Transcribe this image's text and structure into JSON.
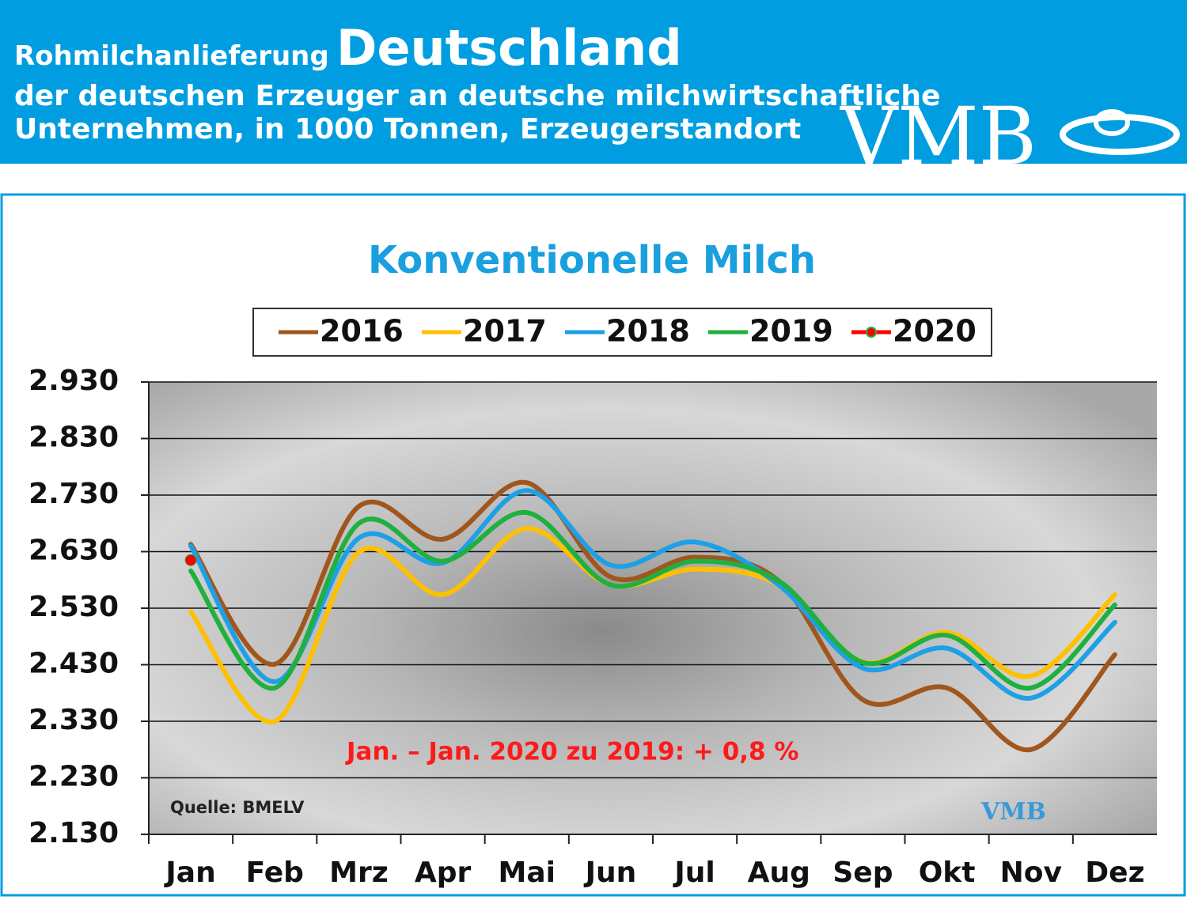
{
  "header": {
    "title_small": "Rohmilchanlieferung",
    "title_big": "Deutschland",
    "subtitle_1": "der deutschen Erzeuger an deutsche milchwirtschaftliche",
    "subtitle_2": "Unternehmen, in 1000 Tonnen, Erzeugerstandort",
    "logo": "VMB"
  },
  "chart_data": {
    "type": "line",
    "title": "Konventionelle Milch",
    "categories": [
      "Jan",
      "Feb",
      "Mrz",
      "Apr",
      "Mai",
      "Jun",
      "Jul",
      "Aug",
      "Sep",
      "Okt",
      "Nov",
      "Dez"
    ],
    "series": [
      {
        "name": "2016",
        "color": "#a0561c",
        "values": [
          2643,
          2431,
          2710,
          2652,
          2752,
          2585,
          2620,
          2578,
          2368,
          2389,
          2280,
          2448
        ]
      },
      {
        "name": "2017",
        "color": "#ffc000",
        "values": [
          2524,
          2330,
          2629,
          2554,
          2671,
          2571,
          2599,
          2571,
          2435,
          2487,
          2410,
          2554
        ]
      },
      {
        "name": "2018",
        "color": "#1ea0e6",
        "values": [
          2640,
          2400,
          2654,
          2610,
          2738,
          2606,
          2647,
          2571,
          2424,
          2459,
          2371,
          2505
        ]
      },
      {
        "name": "2019",
        "color": "#1fb040",
        "values": [
          2596,
          2389,
          2680,
          2613,
          2699,
          2571,
          2613,
          2578,
          2434,
          2482,
          2389,
          2536
        ]
      },
      {
        "name": "2020",
        "color": "#ff0000",
        "values": [
          2615,
          null,
          null,
          null,
          null,
          null,
          null,
          null,
          null,
          null,
          null,
          null
        ]
      }
    ],
    "ylim": [
      2130,
      2930
    ],
    "yticks": [
      {
        "value": 2130,
        "label": "2.130"
      },
      {
        "value": 2230,
        "label": "2.230"
      },
      {
        "value": 2330,
        "label": "2.330"
      },
      {
        "value": 2430,
        "label": "2.430"
      },
      {
        "value": 2530,
        "label": "2.530"
      },
      {
        "value": 2630,
        "label": "2.630"
      },
      {
        "value": 2730,
        "label": "2.730"
      },
      {
        "value": 2830,
        "label": "2.830"
      },
      {
        "value": 2930,
        "label": "2.930"
      }
    ],
    "grid": true,
    "annotation": "Jan. – Jan. 2020 zu 2019: + 0,8 %",
    "source": "Quelle:  BMELV",
    "watermark": "VMB"
  }
}
